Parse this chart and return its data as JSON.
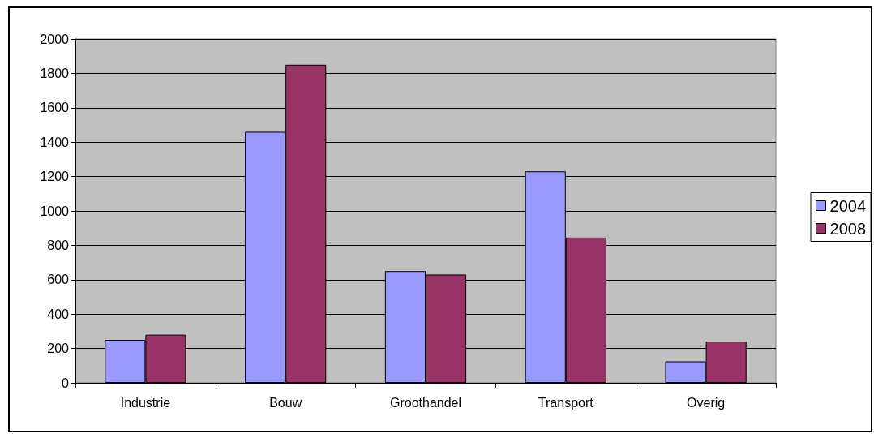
{
  "chart_data": {
    "type": "bar",
    "categories": [
      "Industrie",
      "Bouw",
      "Groothandel",
      "Transport",
      "Overig"
    ],
    "series": [
      {
        "name": "2004",
        "color": "#9999ff",
        "values": [
          250,
          1460,
          650,
          1230,
          125
        ]
      },
      {
        "name": "2008",
        "color": "#993366",
        "values": [
          280,
          1850,
          630,
          845,
          240
        ]
      }
    ],
    "ylim": [
      0,
      2000
    ],
    "yticks": [
      0,
      200,
      400,
      600,
      800,
      1000,
      1200,
      1400,
      1600,
      1800,
      2000
    ],
    "grid": "y",
    "legend": "right"
  }
}
